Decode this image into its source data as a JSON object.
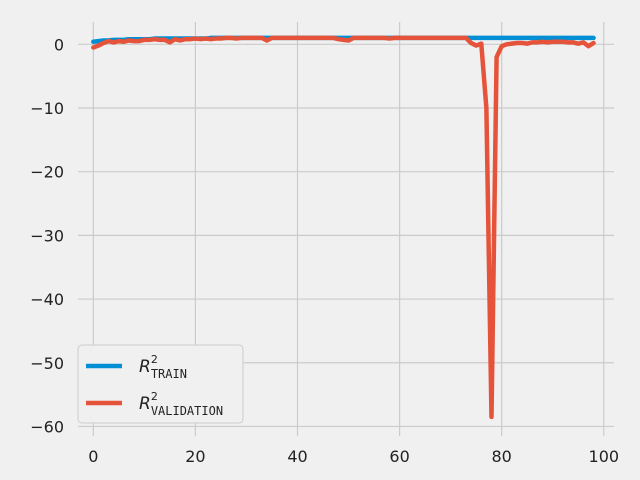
{
  "chart_data": {
    "type": "line",
    "xlim": [
      -3,
      102
    ],
    "ylim": [
      -61.5,
      3.5
    ],
    "xticks": [
      0,
      20,
      40,
      60,
      80,
      100
    ],
    "yticks": [
      0,
      -10,
      -20,
      -30,
      -40,
      -50,
      -60
    ],
    "grid": true,
    "legend_placement": "lower-left",
    "series": [
      {
        "name": "R^2 TRAIN",
        "name_main": "R",
        "name_sup": "2",
        "name_sub": "TRAIN",
        "color": "#008fd5",
        "x": [
          0,
          1,
          2,
          3,
          4,
          5,
          6,
          7,
          8,
          9,
          10,
          11,
          12,
          13,
          14,
          15,
          16,
          17,
          18,
          19,
          20,
          21,
          22,
          23,
          24,
          25,
          26,
          27,
          28,
          29,
          30,
          31,
          32,
          33,
          34,
          35,
          36,
          37,
          38,
          39,
          40,
          41,
          42,
          43,
          44,
          45,
          46,
          47,
          48,
          49,
          50,
          51,
          52,
          53,
          54,
          55,
          56,
          57,
          58,
          59,
          60,
          61,
          62,
          63,
          64,
          65,
          66,
          67,
          68,
          69,
          70,
          71,
          72,
          73,
          74,
          75,
          76,
          77,
          78,
          79,
          80,
          81,
          82,
          83,
          84,
          85,
          86,
          87,
          88,
          89,
          90,
          91,
          92,
          93,
          94,
          95,
          96,
          97,
          98
        ],
        "y": [
          0.4,
          0.5,
          0.6,
          0.6,
          0.7,
          0.7,
          0.7,
          0.8,
          0.8,
          0.8,
          0.8,
          0.8,
          0.9,
          0.9,
          0.9,
          0.9,
          0.9,
          0.9,
          0.9,
          0.9,
          0.9,
          0.9,
          0.9,
          1.0,
          1.0,
          1.0,
          1.0,
          1.0,
          1.0,
          1.0,
          1.0,
          1.0,
          1.0,
          1.0,
          1.0,
          1.0,
          1.0,
          1.0,
          1.0,
          1.0,
          1.0,
          1.0,
          1.0,
          1.0,
          1.0,
          1.0,
          1.0,
          1.0,
          1.0,
          1.0,
          1.0,
          1.0,
          1.0,
          1.0,
          1.0,
          1.0,
          1.0,
          1.0,
          1.0,
          1.0,
          1.0,
          1.0,
          1.0,
          1.0,
          1.0,
          1.0,
          1.0,
          1.0,
          1.0,
          1.0,
          1.0,
          1.0,
          1.0,
          1.0,
          1.0,
          1.0,
          1.0,
          1.0,
          1.0,
          1.0,
          1.0,
          1.0,
          1.0,
          1.0,
          1.0,
          1.0,
          1.0,
          1.0,
          1.0,
          1.0,
          1.0,
          1.0,
          1.0,
          1.0,
          1.0,
          1.0,
          1.0,
          1.0,
          1.0
        ]
      },
      {
        "name": "R^2 VALIDATION",
        "name_main": "R",
        "name_sup": "2",
        "name_sub": "VALIDATION",
        "color": "#e5533a",
        "x": [
          0,
          1,
          2,
          3,
          4,
          5,
          6,
          7,
          8,
          9,
          10,
          11,
          12,
          13,
          14,
          15,
          16,
          17,
          18,
          19,
          20,
          21,
          22,
          23,
          24,
          25,
          26,
          27,
          28,
          29,
          30,
          31,
          32,
          33,
          34,
          35,
          36,
          37,
          38,
          39,
          40,
          41,
          42,
          43,
          44,
          45,
          46,
          47,
          48,
          49,
          50,
          51,
          52,
          53,
          54,
          55,
          56,
          57,
          58,
          59,
          60,
          61,
          62,
          63,
          64,
          65,
          66,
          67,
          68,
          69,
          70,
          71,
          72,
          73,
          74,
          75,
          76,
          77,
          78,
          79,
          80,
          81,
          82,
          83,
          84,
          85,
          86,
          87,
          88,
          89,
          90,
          91,
          92,
          93,
          94,
          95,
          96,
          97,
          98
        ],
        "y": [
          -0.5,
          -0.2,
          0.2,
          0.5,
          0.3,
          0.5,
          0.4,
          0.6,
          0.5,
          0.5,
          0.7,
          0.7,
          0.8,
          0.7,
          0.7,
          0.3,
          0.8,
          0.6,
          0.8,
          0.8,
          0.9,
          0.8,
          0.9,
          0.8,
          0.9,
          0.9,
          1.0,
          1.0,
          0.9,
          1.0,
          1.0,
          1.0,
          1.0,
          1.0,
          0.6,
          1.0,
          1.0,
          1.0,
          1.0,
          1.0,
          1.0,
          1.0,
          1.0,
          1.0,
          1.0,
          1.0,
          1.0,
          1.0,
          0.8,
          0.7,
          0.6,
          1.0,
          1.0,
          1.0,
          1.0,
          1.0,
          1.0,
          1.0,
          0.9,
          1.0,
          1.0,
          1.0,
          1.0,
          1.0,
          1.0,
          1.0,
          1.0,
          1.0,
          1.0,
          1.0,
          1.0,
          1.0,
          1.0,
          1.0,
          0.2,
          -0.2,
          0.1,
          -10,
          -58.5,
          -2,
          -0.3,
          0.0,
          0.1,
          0.2,
          0.2,
          0.1,
          0.3,
          0.3,
          0.4,
          0.3,
          0.4,
          0.4,
          0.4,
          0.3,
          0.3,
          0.1,
          0.3,
          -0.3,
          0.2
        ]
      }
    ]
  }
}
